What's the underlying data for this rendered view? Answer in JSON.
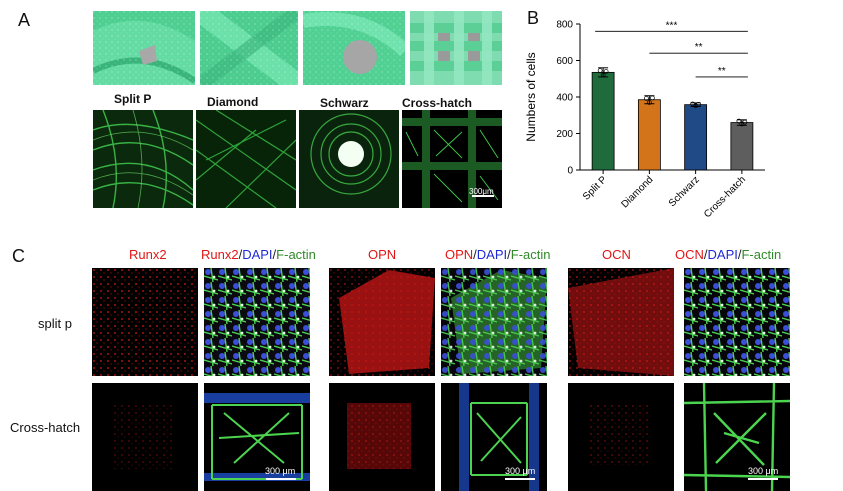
{
  "panels": {
    "a": "A",
    "b": "B",
    "c": "C"
  },
  "panel_a": {
    "labels": [
      "Split P",
      "Diamond",
      "Schwarz",
      "Cross-hatch"
    ],
    "scale_bar": "300μm"
  },
  "panel_c": {
    "col_heads": [
      {
        "text": [
          {
            "t": "Runx2",
            "c": "red"
          }
        ]
      },
      {
        "text": [
          {
            "t": "Runx2",
            "c": "red"
          },
          {
            "t": "/",
            "c": "dark"
          },
          {
            "t": "DAPI",
            "c": "blue"
          },
          {
            "t": "/",
            "c": "dark"
          },
          {
            "t": "F-actin",
            "c": "green"
          }
        ]
      },
      {
        "text": [
          {
            "t": "OPN",
            "c": "red"
          }
        ]
      },
      {
        "text": [
          {
            "t": "OPN",
            "c": "red"
          },
          {
            "t": "/",
            "c": "dark"
          },
          {
            "t": "DAPI",
            "c": "blue"
          },
          {
            "t": "/",
            "c": "dark"
          },
          {
            "t": "F-actin",
            "c": "green"
          }
        ]
      },
      {
        "text": [
          {
            "t": "OCN",
            "c": "red"
          }
        ]
      },
      {
        "text": [
          {
            "t": "OCN",
            "c": "red"
          },
          {
            "t": "/",
            "c": "dark"
          },
          {
            "t": "DAPI",
            "c": "blue"
          },
          {
            "t": "/",
            "c": "dark"
          },
          {
            "t": "F-actin",
            "c": "green"
          }
        ]
      }
    ],
    "row_labels": [
      "split p",
      "Cross-hatch"
    ],
    "scale_bar": "300 μm"
  },
  "chart_data": {
    "type": "bar",
    "categories": [
      "Split P",
      "Diamond",
      "Schwarz",
      "Cross-hatch"
    ],
    "values": [
      535,
      385,
      358,
      260
    ],
    "errors": [
      25,
      22,
      10,
      15
    ],
    "points": [
      [
        545,
        520,
        540
      ],
      [
        392,
        370,
        395
      ],
      [
        362,
        352,
        360
      ],
      [
        268,
        252,
        262
      ]
    ],
    "colors": [
      "#1f6b3c",
      "#d4741a",
      "#1f4a86",
      "#5e5e5e"
    ],
    "ylabel": "Numbers of cells",
    "ylim": [
      0,
      800
    ],
    "yticks": [
      0,
      200,
      400,
      600,
      800
    ],
    "significance": [
      {
        "from": 0,
        "to": 3,
        "label": "***"
      },
      {
        "from": 1,
        "to": 3,
        "label": "**"
      },
      {
        "from": 2,
        "to": 3,
        "label": "**"
      }
    ]
  }
}
